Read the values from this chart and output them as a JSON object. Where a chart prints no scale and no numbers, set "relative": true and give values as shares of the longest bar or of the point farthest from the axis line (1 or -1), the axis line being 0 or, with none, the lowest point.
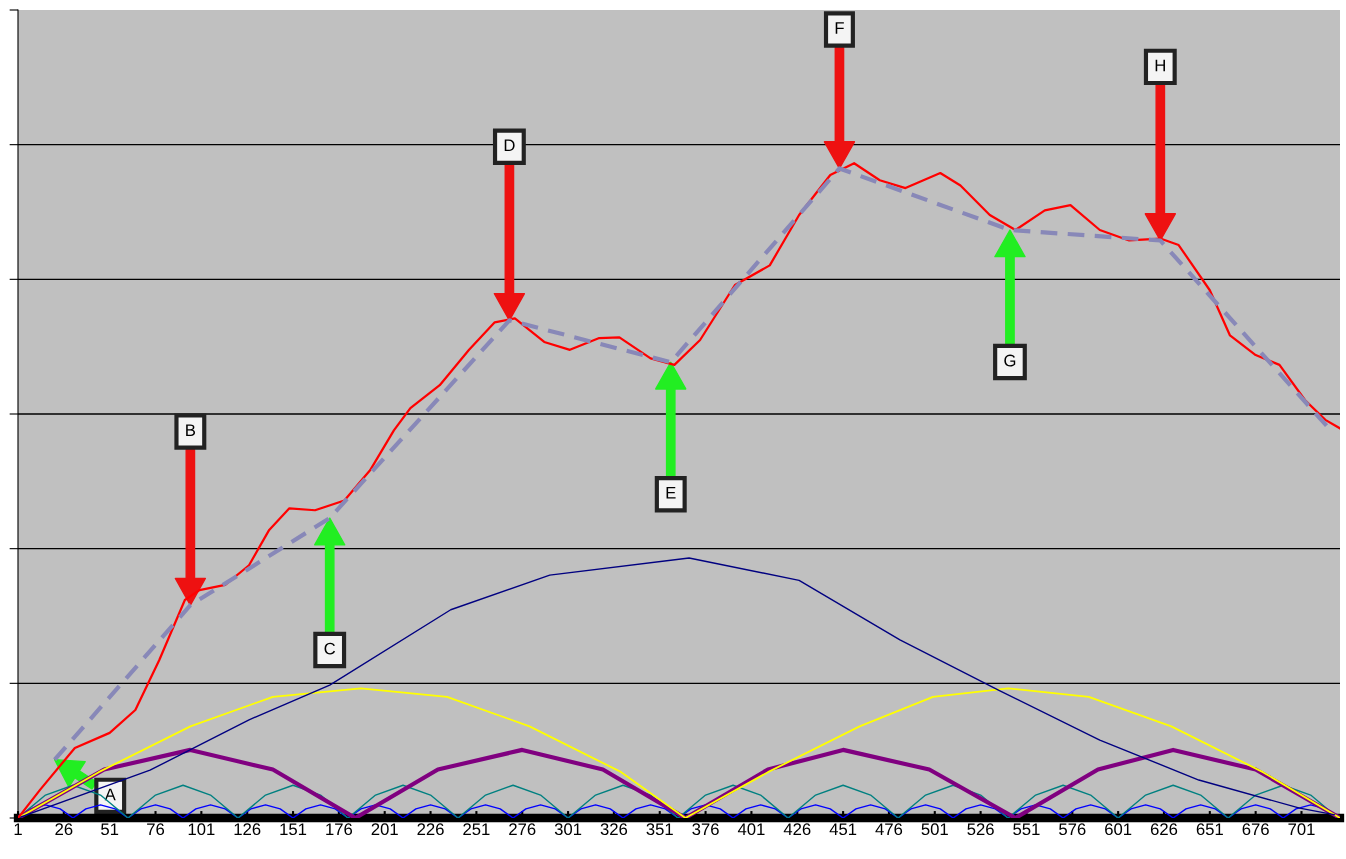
{
  "chart_data": {
    "type": "line",
    "relative": true,
    "grid": "y",
    "marker": "none",
    "xlim": [
      1,
      722
    ],
    "xticks": [
      1,
      26,
      51,
      76,
      101,
      126,
      151,
      176,
      201,
      226,
      251,
      276,
      301,
      326,
      351,
      376,
      401,
      426,
      451,
      476,
      501,
      526,
      551,
      576,
      601,
      626,
      651,
      676,
      701
    ],
    "series": [
      {
        "color": "#0000ff",
        "x": [
          1,
          8,
          16,
          24,
          31,
          38,
          46,
          54,
          61,
          68,
          76,
          84,
          91,
          98,
          106,
          114,
          121,
          128,
          136,
          144,
          151,
          158,
          166,
          174,
          181,
          188,
          196,
          204,
          211,
          218,
          226,
          234,
          241,
          248,
          256,
          264,
          271,
          278,
          286,
          294,
          301,
          308,
          316,
          324,
          331,
          338,
          346,
          354,
          361,
          368,
          376,
          384,
          391,
          398,
          406,
          414,
          421,
          428,
          436,
          444,
          451,
          458,
          466,
          474,
          481,
          488,
          496,
          504,
          511,
          518,
          526,
          534,
          541,
          548,
          556,
          564,
          571,
          578,
          586,
          594,
          601,
          608,
          616,
          624,
          631,
          638,
          646,
          654,
          661,
          668,
          676,
          684,
          691,
          698,
          706,
          714,
          721
        ],
        "values": [
          0,
          0.014,
          0.02,
          0.014,
          0,
          0.014,
          0.02,
          0.014,
          0,
          0.014,
          0.02,
          0.014,
          0,
          0.014,
          0.02,
          0.014,
          0,
          0.014,
          0.02,
          0.014,
          0,
          0.014,
          0.02,
          0.014,
          0,
          0.014,
          0.02,
          0.014,
          0,
          0.014,
          0.02,
          0.014,
          0,
          0.014,
          0.02,
          0.014,
          0,
          0.014,
          0.02,
          0.014,
          0,
          0.014,
          0.02,
          0.014,
          0,
          0.014,
          0.02,
          0.014,
          0,
          0.014,
          0.02,
          0.014,
          0,
          0.014,
          0.02,
          0.014,
          0,
          0.014,
          0.02,
          0.014,
          0,
          0.014,
          0.02,
          0.014,
          0,
          0.014,
          0.02,
          0.014,
          0,
          0.014,
          0.02,
          0.014,
          0,
          0.014,
          0.02,
          0.014,
          0,
          0.014,
          0.02,
          0.014,
          0,
          0.014,
          0.02,
          0.014,
          0,
          0.014,
          0.02,
          0.014,
          0,
          0.014,
          0.02,
          0.014,
          0,
          0.014,
          0.02,
          0.014,
          0
        ]
      },
      {
        "color": "#008080",
        "x": [
          1,
          16,
          31,
          46,
          61,
          76,
          91,
          106,
          121,
          136,
          151,
          166,
          181,
          196,
          211,
          226,
          241,
          256,
          271,
          286,
          301,
          316,
          331,
          346,
          361,
          376,
          391,
          406,
          421,
          436,
          451,
          466,
          481,
          496,
          511,
          526,
          541,
          556,
          571,
          586,
          601,
          616,
          631,
          646,
          661,
          676,
          691,
          706,
          721
        ],
        "values": [
          0,
          0.035,
          0.05,
          0.035,
          0,
          0.035,
          0.05,
          0.035,
          0,
          0.035,
          0.05,
          0.035,
          0,
          0.035,
          0.05,
          0.035,
          0,
          0.035,
          0.05,
          0.035,
          0,
          0.035,
          0.05,
          0.035,
          0,
          0.035,
          0.05,
          0.035,
          0,
          0.035,
          0.05,
          0.035,
          0,
          0.035,
          0.05,
          0.035,
          0,
          0.035,
          0.05,
          0.035,
          0,
          0.035,
          0.05,
          0.035,
          0,
          0.035,
          0.05,
          0.035,
          0
        ]
      },
      {
        "color": "#800080",
        "x": [
          1,
          48,
          95,
          140,
          185,
          230,
          276,
          320,
          365,
          410,
          451,
          498,
          545,
          590,
          631,
          676,
          722
        ],
        "values": [
          0,
          0.074,
          0.104,
          0.074,
          0,
          0.074,
          0.104,
          0.074,
          0,
          0.074,
          0.104,
          0.074,
          0,
          0.074,
          0.104,
          0.074,
          0
        ]
      },
      {
        "color": "#ffff00",
        "x": [
          1,
          45,
          95,
          140,
          188,
          235,
          280,
          330,
          365,
          410,
          460,
          500,
          541,
          585,
          630,
          680,
          722
        ],
        "values": [
          0,
          0.07,
          0.14,
          0.185,
          0.198,
          0.185,
          0.14,
          0.07,
          0,
          0.07,
          0.14,
          0.185,
          0.198,
          0.185,
          0.14,
          0.07,
          0
        ]
      },
      {
        "color": "#000080",
        "x": [
          1,
          73,
          127,
          171,
          237,
          291,
          367,
          427,
          482,
          536,
          591,
          645,
          700,
          719
        ],
        "values": [
          0,
          0.073,
          0.15,
          0.203,
          0.318,
          0.371,
          0.397,
          0.363,
          0.272,
          0.195,
          0.119,
          0.058,
          0.015,
          0.005
        ]
      },
      {
        "color": "#ff0000",
        "x": [
          1,
          13,
          32,
          51,
          65,
          78,
          92,
          100,
          114,
          127,
          138,
          149,
          163,
          179,
          193,
          206,
          215,
          231,
          247,
          261,
          272,
          288,
          302,
          318,
          329,
          346,
          359,
          373,
          392,
          411,
          427,
          444,
          457,
          471,
          485,
          504,
          515,
          531,
          545,
          561,
          575,
          591,
          607,
          624,
          634,
          651,
          662,
          676,
          689,
          703,
          714,
          722
        ],
        "values": [
          0,
          0.043,
          0.107,
          0.13,
          0.165,
          0.241,
          0.333,
          0.348,
          0.356,
          0.386,
          0.44,
          0.473,
          0.47,
          0.485,
          0.531,
          0.592,
          0.626,
          0.661,
          0.715,
          0.757,
          0.763,
          0.727,
          0.715,
          0.733,
          0.734,
          0.702,
          0.692,
          0.73,
          0.814,
          0.844,
          0.921,
          0.982,
          1.0,
          0.974,
          0.962,
          0.985,
          0.966,
          0.921,
          0.898,
          0.928,
          0.936,
          0.898,
          0.882,
          0.885,
          0.875,
          0.806,
          0.737,
          0.707,
          0.692,
          0.638,
          0.608,
          0.595
        ]
      },
      {
        "color": "#8888b8",
        "line_style": "dashed",
        "x": [
          21,
          95,
          171,
          269,
          357,
          449,
          542,
          624,
          716
        ],
        "values": [
          0.089,
          0.325,
          0.458,
          0.76,
          0.696,
          0.992,
          0.898,
          0.882,
          0.595
        ]
      }
    ],
    "annotations": [
      "A",
      "B",
      "C",
      "D",
      "E",
      "F",
      "G",
      "H"
    ]
  }
}
